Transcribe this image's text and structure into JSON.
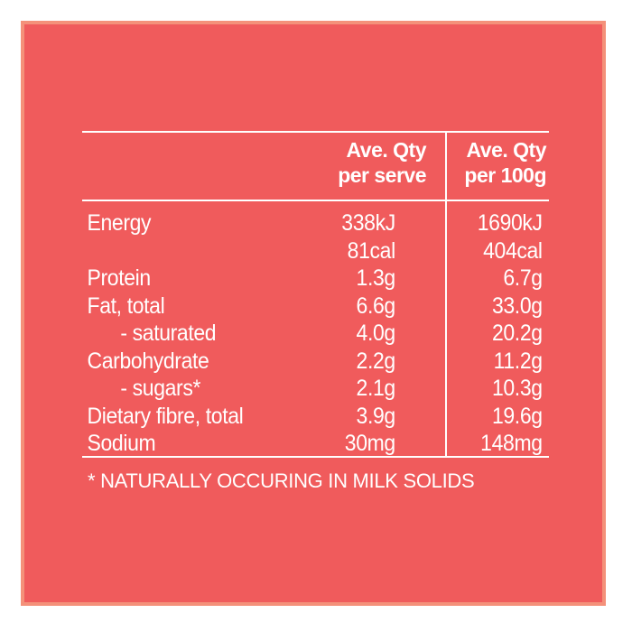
{
  "table": {
    "header": {
      "col1_line1": "Ave. Qty",
      "col1_line2": "per serve",
      "col2_line1": "Ave. Qty",
      "col2_line2": "per 100g"
    },
    "rows": [
      {
        "label": "Energy",
        "per_serve": "338kJ",
        "per_100g": "1690kJ"
      },
      {
        "label": "",
        "per_serve": "81cal",
        "per_100g": "404cal"
      },
      {
        "label": "Protein",
        "per_serve": "1.3g",
        "per_100g": "6.7g"
      },
      {
        "label": "Fat, total",
        "per_serve": "6.6g",
        "per_100g": "33.0g"
      },
      {
        "label": "- saturated",
        "per_serve": "4.0g",
        "per_100g": "20.2g"
      },
      {
        "label": "Carbohydrate",
        "per_serve": "2.2g",
        "per_100g": "11.2g"
      },
      {
        "label": "- sugars*",
        "per_serve": "2.1g",
        "per_100g": "10.3g"
      },
      {
        "label": "Dietary fibre, total",
        "per_serve": "3.9g",
        "per_100g": "19.6g"
      },
      {
        "label": "Sodium",
        "per_serve": "30mg",
        "per_100g": "148mg"
      }
    ],
    "footnote": "* NATURALLY OCCURING IN MILK SOLIDS"
  },
  "colors": {
    "background": "#f05b5c",
    "border": "#f4917a",
    "text": "#ffffff"
  }
}
